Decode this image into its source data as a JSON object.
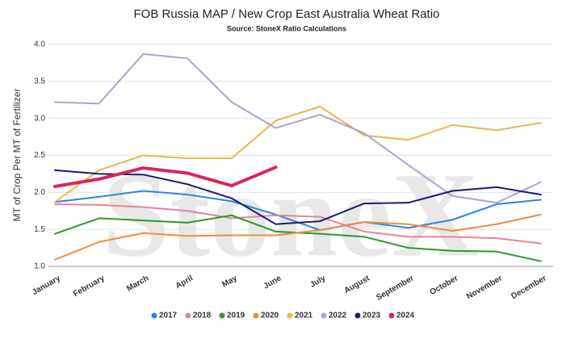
{
  "chart_data": {
    "type": "line",
    "title": "FOB Russia MAP / New Crop East Australia Wheat Ratio",
    "subtitle": "Source: StoneX Ratio Calculations",
    "watermark": "StoneX",
    "y_label": "MT of Crop Per MT of Fertilizer",
    "categories": [
      "January",
      "February",
      "March",
      "April",
      "May",
      "June",
      "July",
      "August",
      "September",
      "October",
      "November",
      "December"
    ],
    "ylim": [
      1,
      4
    ],
    "yticks": [
      {
        "value": 1,
        "label": "1.0"
      },
      1.5,
      {
        "value": 2,
        "label": "2.0"
      },
      2.5,
      {
        "value": 3,
        "label": "3.0"
      },
      3.5,
      {
        "value": 4,
        "label": "4.0"
      }
    ],
    "grid": true,
    "legend": "bottom",
    "series": [
      {
        "name": "2017",
        "color": "#2e86de",
        "values": [
          1.87,
          1.94,
          2.02,
          1.97,
          1.88,
          1.7,
          1.49,
          1.6,
          1.52,
          1.63,
          1.84,
          1.9
        ]
      },
      {
        "name": "2018",
        "color": "#e8829a",
        "values": [
          1.84,
          1.83,
          1.8,
          1.75,
          1.65,
          1.69,
          1.67,
          1.47,
          1.4,
          1.4,
          1.38,
          1.31
        ]
      },
      {
        "name": "2019",
        "color": "#2a9a2a",
        "values": [
          1.44,
          1.65,
          1.62,
          1.59,
          1.69,
          1.47,
          1.44,
          1.4,
          1.25,
          1.21,
          1.2,
          1.07
        ]
      },
      {
        "name": "2020",
        "color": "#f08a3c",
        "values": [
          1.09,
          1.33,
          1.45,
          1.41,
          1.42,
          1.42,
          1.49,
          1.6,
          1.57,
          1.48,
          1.57,
          1.7
        ]
      },
      {
        "name": "2021",
        "color": "#f0b44c",
        "values": [
          1.87,
          2.3,
          2.5,
          2.46,
          2.46,
          2.97,
          3.16,
          2.77,
          2.71,
          2.91,
          2.84,
          2.94
        ]
      },
      {
        "name": "2022",
        "color": "#a9a6cc",
        "values": [
          3.22,
          3.2,
          3.87,
          3.81,
          3.22,
          2.87,
          3.05,
          2.8,
          2.37,
          1.95,
          1.86,
          2.14
        ]
      },
      {
        "name": "2023",
        "color": "#1a1f6e",
        "values": [
          2.3,
          2.25,
          2.24,
          2.11,
          1.92,
          1.57,
          1.61,
          1.85,
          1.86,
          2.02,
          2.07,
          1.97
        ]
      },
      {
        "name": "2024",
        "color": "#d6285a",
        "values": [
          2.08,
          2.18,
          2.33,
          2.26,
          2.09,
          2.34,
          null,
          null,
          null,
          null,
          null,
          null
        ]
      }
    ]
  }
}
